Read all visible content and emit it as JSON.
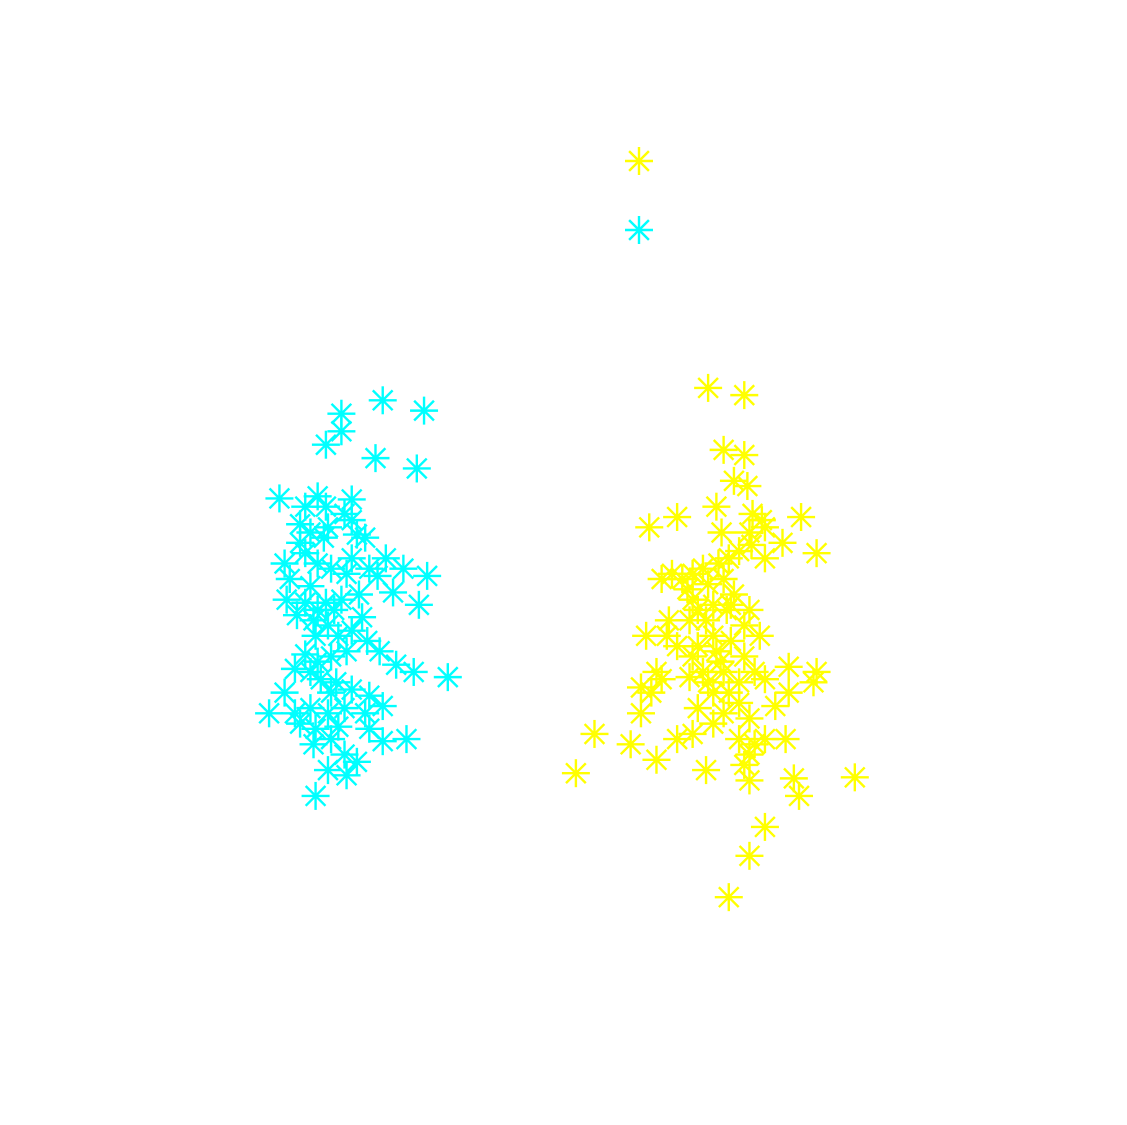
{
  "chart_data": {
    "type": "scatter",
    "title": "",
    "xlabel": "",
    "ylabel": "",
    "axes_visible": false,
    "grid": false,
    "marker": "asterisk",
    "xlim": [
      0,
      10
    ],
    "ylim": [
      0,
      10
    ],
    "legend": {
      "placement": "top-center",
      "entries": [
        {
          "series_index": 0,
          "label": ""
        },
        {
          "series_index": 1,
          "label": ""
        }
      ]
    },
    "series": [
      {
        "color": "#ffff00",
        "points": [
          [
            6.4,
            6.7
          ],
          [
            6.75,
            6.63
          ],
          [
            6.55,
            6.1
          ],
          [
            6.75,
            6.05
          ],
          [
            6.65,
            5.8
          ],
          [
            6.78,
            5.75
          ],
          [
            6.1,
            5.45
          ],
          [
            6.48,
            5.55
          ],
          [
            6.83,
            5.48
          ],
          [
            6.92,
            5.42
          ],
          [
            7.3,
            5.45
          ],
          [
            7.45,
            5.1
          ],
          [
            6.8,
            5.3
          ],
          [
            6.95,
            5.35
          ],
          [
            6.82,
            5.18
          ],
          [
            6.7,
            5.12
          ],
          [
            6.6,
            5.05
          ],
          [
            6.5,
            5.0
          ],
          [
            6.35,
            4.95
          ],
          [
            6.25,
            4.9
          ],
          [
            6.15,
            4.85
          ],
          [
            6.05,
            4.9
          ],
          [
            5.95,
            4.85
          ],
          [
            6.2,
            4.75
          ],
          [
            6.4,
            4.8
          ],
          [
            6.55,
            4.85
          ],
          [
            6.65,
            4.7
          ],
          [
            6.58,
            4.55
          ],
          [
            6.45,
            4.6
          ],
          [
            6.3,
            4.55
          ],
          [
            6.75,
            4.4
          ],
          [
            6.9,
            4.3
          ],
          [
            6.62,
            4.25
          ],
          [
            6.45,
            4.3
          ],
          [
            6.3,
            4.2
          ],
          [
            6.75,
            4.1
          ],
          [
            6.52,
            4.05
          ],
          [
            6.4,
            3.85
          ],
          [
            6.6,
            3.75
          ],
          [
            6.7,
            3.65
          ],
          [
            6.8,
            3.5
          ],
          [
            6.55,
            3.55
          ],
          [
            6.45,
            3.45
          ],
          [
            6.7,
            3.3
          ],
          [
            6.85,
            3.25
          ],
          [
            6.95,
            3.3
          ],
          [
            7.15,
            3.3
          ],
          [
            6.8,
            3.15
          ],
          [
            6.75,
            3.05
          ],
          [
            7.05,
            3.62
          ],
          [
            7.42,
            3.85
          ],
          [
            7.45,
            3.95
          ],
          [
            7.18,
            3.75
          ],
          [
            6.95,
            3.88
          ],
          [
            6.7,
            3.85
          ],
          [
            6.85,
            3.95
          ],
          [
            6.25,
            4.1
          ],
          [
            6.1,
            4.2
          ],
          [
            5.95,
            3.88
          ],
          [
            5.85,
            3.75
          ],
          [
            5.75,
            3.8
          ],
          [
            5.9,
            3.95
          ],
          [
            6.1,
            3.3
          ],
          [
            6.25,
            3.35
          ],
          [
            5.75,
            3.55
          ],
          [
            6.0,
            4.3
          ],
          [
            6.3,
            3.6
          ],
          [
            6.45,
            3.75
          ],
          [
            6.55,
            3.95
          ],
          [
            6.38,
            4.45
          ],
          [
            6.25,
            4.65
          ],
          [
            6.95,
            5.05
          ],
          [
            7.12,
            5.2
          ],
          [
            7.18,
            4.0
          ],
          [
            5.3,
            3.35
          ],
          [
            5.65,
            3.25
          ],
          [
            5.9,
            3.1
          ],
          [
            5.12,
            2.97
          ],
          [
            6.38,
            3.0
          ],
          [
            6.8,
            2.9
          ],
          [
            7.23,
            2.92
          ],
          [
            7.28,
            2.75
          ],
          [
            7.82,
            2.93
          ],
          [
            6.95,
            2.45
          ],
          [
            6.8,
            2.17
          ],
          [
            6.6,
            1.77
          ],
          [
            6.53,
            5.3
          ],
          [
            5.83,
            5.35
          ],
          [
            5.8,
            4.3
          ],
          [
            6.02,
            4.45
          ],
          [
            6.22,
            4.45
          ],
          [
            6.62,
            4.6
          ],
          [
            6.8,
            4.55
          ],
          [
            6.35,
            3.95
          ],
          [
            6.48,
            4.15
          ],
          [
            6.22,
            3.9
          ]
        ]
      },
      {
        "color": "#00ffff",
        "points": [
          [
            2.85,
            6.45
          ],
          [
            3.25,
            6.58
          ],
          [
            2.7,
            6.15
          ],
          [
            2.85,
            6.28
          ],
          [
            3.18,
            6.02
          ],
          [
            2.25,
            5.63
          ],
          [
            2.5,
            5.55
          ],
          [
            2.62,
            5.65
          ],
          [
            2.7,
            5.55
          ],
          [
            2.88,
            5.48
          ],
          [
            2.95,
            5.42
          ],
          [
            2.72,
            5.35
          ],
          [
            2.55,
            5.3
          ],
          [
            2.45,
            5.2
          ],
          [
            2.5,
            5.1
          ],
          [
            2.62,
            5.0
          ],
          [
            2.75,
            4.95
          ],
          [
            2.9,
            4.9
          ],
          [
            2.95,
            5.05
          ],
          [
            3.12,
            4.95
          ],
          [
            3.2,
            4.88
          ],
          [
            3.35,
            4.72
          ],
          [
            3.02,
            4.7
          ],
          [
            2.85,
            4.65
          ],
          [
            2.7,
            4.62
          ],
          [
            2.62,
            4.55
          ],
          [
            2.5,
            4.62
          ],
          [
            2.42,
            4.5
          ],
          [
            2.58,
            4.45
          ],
          [
            2.72,
            4.4
          ],
          [
            2.82,
            4.3
          ],
          [
            2.95,
            4.35
          ],
          [
            3.1,
            4.25
          ],
          [
            3.22,
            4.15
          ],
          [
            2.9,
            4.15
          ],
          [
            2.75,
            4.1
          ],
          [
            2.62,
            4.05
          ],
          [
            2.5,
            4.12
          ],
          [
            2.4,
            3.98
          ],
          [
            2.55,
            3.95
          ],
          [
            2.65,
            3.88
          ],
          [
            2.8,
            3.85
          ],
          [
            2.95,
            3.78
          ],
          [
            3.12,
            3.72
          ],
          [
            3.25,
            3.62
          ],
          [
            3.08,
            3.55
          ],
          [
            2.88,
            3.6
          ],
          [
            2.72,
            3.55
          ],
          [
            2.55,
            3.6
          ],
          [
            2.45,
            3.45
          ],
          [
            2.6,
            3.4
          ],
          [
            2.75,
            3.3
          ],
          [
            2.88,
            3.15
          ],
          [
            2.72,
            3.0
          ],
          [
            2.9,
            2.95
          ],
          [
            2.6,
            2.75
          ],
          [
            2.3,
            3.75
          ],
          [
            2.4,
            3.55
          ],
          [
            2.15,
            3.55
          ],
          [
            2.55,
            4.78
          ],
          [
            2.35,
            4.85
          ],
          [
            2.3,
            5.0
          ],
          [
            3.6,
            4.6
          ],
          [
            3.55,
            3.95
          ],
          [
            3.88,
            3.9
          ],
          [
            3.25,
            3.28
          ],
          [
            3.48,
            3.3
          ],
          [
            3.0,
            3.08
          ],
          [
            2.6,
            4.3
          ],
          [
            2.78,
            4.55
          ],
          [
            3.28,
            5.05
          ],
          [
            3.0,
            5.28
          ],
          [
            3.65,
            6.48
          ],
          [
            3.58,
            5.92
          ],
          [
            3.08,
            5.25
          ],
          [
            2.95,
            5.62
          ],
          [
            2.68,
            5.25
          ],
          [
            2.45,
            5.38
          ],
          [
            2.32,
            4.65
          ],
          [
            3.45,
            4.95
          ],
          [
            3.68,
            4.88
          ],
          [
            3.05,
            4.48
          ],
          [
            2.75,
            3.75
          ],
          [
            2.58,
            3.25
          ],
          [
            2.82,
            3.42
          ],
          [
            3.38,
            4.02
          ],
          [
            3.12,
            3.4
          ]
        ]
      }
    ]
  }
}
